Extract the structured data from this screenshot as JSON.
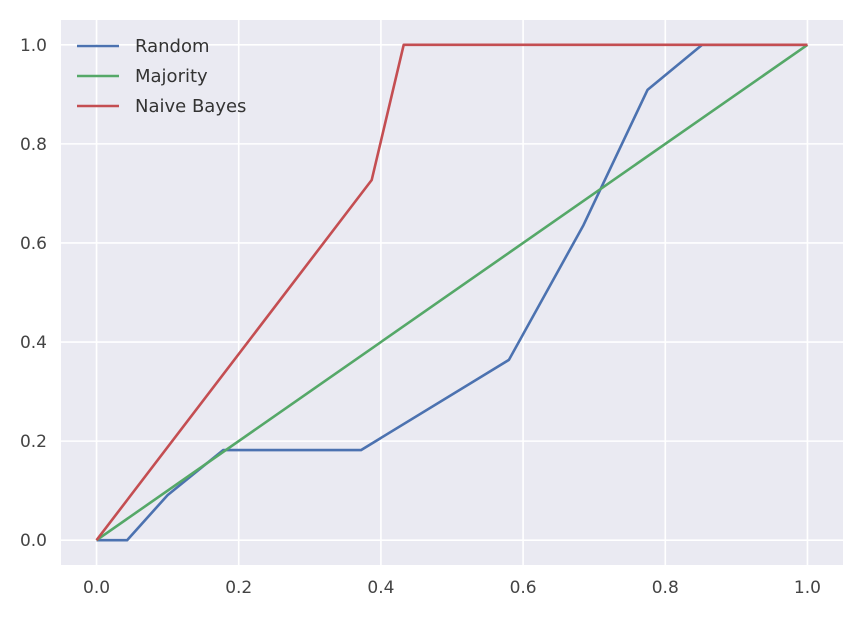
{
  "chart_data": {
    "type": "line",
    "title": "",
    "xlabel": "",
    "ylabel": "",
    "xlim": [
      -0.05,
      1.05
    ],
    "ylim": [
      -0.05,
      1.05
    ],
    "x_ticks": [
      0.0,
      0.2,
      0.4,
      0.6,
      0.8,
      1.0
    ],
    "y_ticks": [
      0.0,
      0.2,
      0.4,
      0.6,
      0.8,
      1.0
    ],
    "x_tick_labels": [
      "0.0",
      "0.2",
      "0.4",
      "0.6",
      "0.8",
      "1.0"
    ],
    "y_tick_labels": [
      "0.0",
      "0.2",
      "0.4",
      "0.6",
      "0.8",
      "1.0"
    ],
    "grid": true,
    "legend_position": "top-left",
    "background_color": "#eaeaf2",
    "series": [
      {
        "name": "Random",
        "color": "#4c72b0",
        "x": [
          0.0,
          0.043,
          0.1,
          0.178,
          0.372,
          0.58,
          0.685,
          0.775,
          0.852,
          1.0
        ],
        "y": [
          0.0,
          0.0,
          0.091,
          0.182,
          0.182,
          0.364,
          0.636,
          0.909,
          1.0,
          1.0
        ]
      },
      {
        "name": "Majority",
        "color": "#55a868",
        "x": [
          0.0,
          1.0
        ],
        "y": [
          0.0,
          1.0
        ]
      },
      {
        "name": "Naive Bayes",
        "color": "#c44e52",
        "x": [
          0.0,
          0.387,
          0.432,
          1.0
        ],
        "y": [
          0.0,
          0.727,
          1.0,
          1.0
        ]
      }
    ]
  }
}
